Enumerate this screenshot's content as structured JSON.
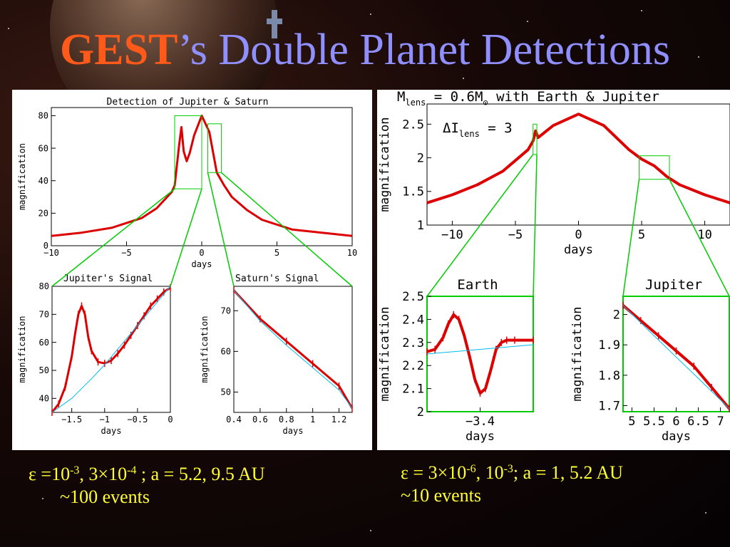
{
  "title": {
    "main": "GEST",
    "rest": "’s Double Planet Detections"
  },
  "colors": {
    "curve": "#dd0000",
    "zoom_box": "#00cc00",
    "model": "#00bbee",
    "title_gest": "#ff5a1a",
    "title_rest": "#8f8fff",
    "caption": "#ffff33"
  },
  "captions": {
    "left": {
      "eps_prefix": "ε =10",
      "exp1": "-3",
      "mid1": ", 3×10",
      "exp2": "-4",
      "tail": " ;  a = 5.2, 9.5 AU",
      "events": "~100 events"
    },
    "right": {
      "eps_prefix": "ε = 3×10",
      "exp1": "-6",
      "mid1": ", 10",
      "exp2": "-3",
      "tail": "; a = 1, 5.2 AU",
      "events": "~10 events"
    }
  },
  "chart_data": [
    {
      "id": "jupiter-saturn-main",
      "type": "line",
      "title": "Detection of Jupiter & Saturn",
      "xlabel": "days",
      "ylabel": "magnification",
      "xlim": [
        -10,
        10
      ],
      "ylim": [
        0,
        85
      ],
      "xticks": [
        -10,
        -5,
        0,
        5,
        10
      ],
      "yticks": [
        0,
        20,
        40,
        60,
        80
      ],
      "series": [
        {
          "x": [
            -10,
            -8,
            -6,
            -4,
            -3,
            -2,
            -1.8,
            -1.5,
            -1.35,
            -1.2,
            -1.0,
            -0.8,
            -0.5,
            0,
            0.5,
            1,
            1.5,
            2,
            3,
            4,
            6,
            8,
            10
          ],
          "y": [
            6,
            8,
            11,
            17,
            23,
            33,
            37,
            62,
            73,
            58,
            52,
            57,
            68,
            80,
            70,
            45,
            37,
            30,
            22,
            16,
            10,
            8,
            6
          ]
        }
      ],
      "zoom_boxes": [
        {
          "x": [
            -1.8,
            0
          ],
          "y": [
            35,
            80
          ]
        },
        {
          "x": [
            0.4,
            1.3
          ],
          "y": [
            45,
            75
          ]
        }
      ]
    },
    {
      "id": "jupiter-signal",
      "type": "line",
      "title": "Jupiter's Signal",
      "xlabel": "days",
      "ylabel": "magnification",
      "xlim": [
        -1.8,
        0
      ],
      "ylim": [
        35,
        80
      ],
      "xticks": [
        -1.5,
        -1,
        -0.5,
        0
      ],
      "yticks": [
        40,
        50,
        60,
        70,
        80
      ],
      "series": [
        {
          "x": [
            -1.8,
            -1.7,
            -1.6,
            -1.5,
            -1.45,
            -1.4,
            -1.35,
            -1.3,
            -1.25,
            -1.2,
            -1.1,
            -1.0,
            -0.9,
            -0.8,
            -0.7,
            -0.6,
            -0.5,
            -0.4,
            -0.3,
            -0.2,
            -0.1,
            0
          ],
          "y": [
            35,
            38,
            44,
            55,
            63,
            70,
            73,
            70,
            62,
            57,
            53,
            52.5,
            53.5,
            56,
            59,
            62.5,
            66,
            69.5,
            73,
            75.5,
            78,
            79.5
          ]
        },
        {
          "x": [
            -1.8,
            -1.5,
            -1.2,
            -1.0,
            -0.5,
            0
          ],
          "y": [
            35,
            40,
            47,
            52,
            66,
            80
          ]
        }
      ]
    },
    {
      "id": "saturn-signal",
      "type": "line",
      "title": "Saturn's Signal",
      "xlabel": "days",
      "ylabel": "magnification",
      "xlim": [
        0.4,
        1.3
      ],
      "ylim": [
        45,
        76
      ],
      "xticks": [
        0.4,
        0.6,
        0.8,
        1,
        1.2
      ],
      "yticks": [
        50,
        60,
        70
      ],
      "series": [
        {
          "x": [
            0.4,
            0.6,
            0.8,
            1.0,
            1.2,
            1.3
          ],
          "y": [
            75,
            68,
            62.5,
            57,
            51.5,
            46
          ]
        },
        {
          "x": [
            0.4,
            0.6,
            0.8,
            1.0,
            1.2,
            1.3
          ],
          "y": [
            75,
            67.5,
            61.5,
            56,
            50.5,
            46
          ]
        }
      ]
    },
    {
      "id": "earth-jupiter-main",
      "type": "line",
      "title": "M_lens = 0.6M_☉ with Earth & Jupiter",
      "title_parts": {
        "m": "M",
        "lens_sub": "lens",
        "eq": " = 0.6M",
        "sun": "⊙",
        "rest": " with Earth & Jupiter"
      },
      "annotation": {
        "d": "ΔI",
        "sub": "lens",
        "val": " = 3"
      },
      "xlabel": "days",
      "ylabel": "magnification",
      "xlim": [
        -12,
        12
      ],
      "ylim": [
        1,
        2.8
      ],
      "xticks": [
        -10,
        -5,
        0,
        5,
        10
      ],
      "yticks": [
        1,
        1.5,
        2,
        2.5
      ],
      "series": [
        {
          "x": [
            -12,
            -10,
            -8,
            -6,
            -4,
            -3.6,
            -3.4,
            -3.2,
            -2,
            0,
            2,
            4,
            5,
            6,
            7,
            8,
            10,
            12
          ],
          "y": [
            1.33,
            1.45,
            1.6,
            1.8,
            2.12,
            2.25,
            2.4,
            2.3,
            2.48,
            2.65,
            2.48,
            2.12,
            1.98,
            1.88,
            1.72,
            1.6,
            1.45,
            1.33
          ]
        }
      ],
      "zoom_boxes": [
        {
          "x": [
            -3.6,
            -3.3
          ],
          "y": [
            2.05,
            2.5
          ]
        },
        {
          "x": [
            4.8,
            7.2
          ],
          "y": [
            1.68,
            2.03
          ]
        }
      ]
    },
    {
      "id": "earth-signal",
      "type": "line",
      "title": "Earth",
      "xlabel": "days",
      "ylabel": "magnification",
      "xlim": [
        -3.6,
        -3.2
      ],
      "ylim": [
        2,
        2.5
      ],
      "xticks": [
        -3.4
      ],
      "yticks": [
        2,
        2.1,
        2.2,
        2.3,
        2.4,
        2.5
      ],
      "series": [
        {
          "x": [
            -3.6,
            -3.57,
            -3.54,
            -3.52,
            -3.5,
            -3.48,
            -3.46,
            -3.44,
            -3.42,
            -3.4,
            -3.38,
            -3.36,
            -3.34,
            -3.32,
            -3.3,
            -3.27,
            -3.2
          ],
          "y": [
            2.26,
            2.27,
            2.32,
            2.38,
            2.42,
            2.4,
            2.33,
            2.24,
            2.14,
            2.08,
            2.1,
            2.18,
            2.27,
            2.3,
            2.31,
            2.31,
            2.31
          ]
        },
        {
          "x": [
            -3.6,
            -3.2
          ],
          "y": [
            2.25,
            2.29
          ]
        }
      ]
    },
    {
      "id": "jupiter-signal-2",
      "type": "line",
      "title": "Jupiter",
      "xlabel": "days",
      "ylabel": "magnification",
      "xlim": [
        4.8,
        7.2
      ],
      "ylim": [
        1.68,
        2.06
      ],
      "xticks": [
        5,
        5.5,
        6,
        6.5,
        7
      ],
      "yticks": [
        1.7,
        1.8,
        1.9,
        2
      ],
      "series": [
        {
          "x": [
            4.8,
            5.2,
            5.6,
            6.0,
            6.4,
            6.8,
            7.2
          ],
          "y": [
            2.03,
            1.98,
            1.93,
            1.88,
            1.83,
            1.76,
            1.69
          ]
        },
        {
          "x": [
            4.8,
            5.5,
            6.0,
            6.5,
            7.2
          ],
          "y": [
            2.03,
            1.93,
            1.86,
            1.79,
            1.69
          ]
        }
      ]
    }
  ]
}
